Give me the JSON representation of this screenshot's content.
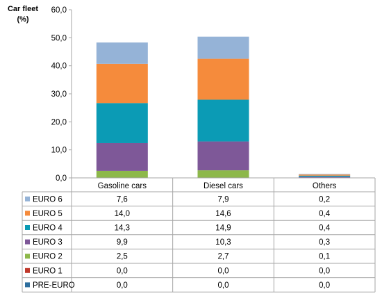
{
  "chart_data": {
    "type": "bar",
    "stacked": true,
    "ylabel_line1": "Car fleet",
    "ylabel_line2": "(%)",
    "ylim": [
      0,
      60
    ],
    "y_ticks": [
      "0,0",
      "10,0",
      "20,0",
      "30,0",
      "40,0",
      "50,0",
      "60,0"
    ],
    "y_tick_values": [
      0,
      10,
      20,
      30,
      40,
      50,
      60
    ],
    "grid": false,
    "legend": "data-table",
    "categories": [
      "Gasoline cars",
      "Diesel cars",
      "Others"
    ],
    "series": [
      {
        "name": "EURO 6",
        "color": "#95B3D7",
        "values": [
          7.6,
          7.9,
          0.2
        ],
        "labels": [
          "7,6",
          "7,9",
          "0,2"
        ]
      },
      {
        "name": "EURO 5",
        "color": "#F58B3C",
        "values": [
          14.0,
          14.6,
          0.4
        ],
        "labels": [
          "14,0",
          "14,6",
          "0,4"
        ]
      },
      {
        "name": "EURO 4",
        "color": "#0B9BB5",
        "values": [
          14.3,
          14.9,
          0.4
        ],
        "labels": [
          "14,3",
          "14,9",
          "0,4"
        ]
      },
      {
        "name": "EURO 3",
        "color": "#7E5898",
        "values": [
          9.9,
          10.3,
          0.3
        ],
        "labels": [
          "9,9",
          "10,3",
          "0,3"
        ]
      },
      {
        "name": "EURO 2",
        "color": "#8DB84A",
        "values": [
          2.5,
          2.7,
          0.1
        ],
        "labels": [
          "2,5",
          "2,7",
          "0,1"
        ]
      },
      {
        "name": "EURO 1",
        "color": "#C0392B",
        "values": [
          0.0,
          0.0,
          0.0
        ],
        "labels": [
          "0,0",
          "0,0",
          "0,0"
        ]
      },
      {
        "name": "PRE-EURO",
        "color": "#2E6E9E",
        "values": [
          0.0,
          0.0,
          0.0
        ],
        "labels": [
          "0,0",
          "0,0",
          "0,0"
        ]
      }
    ]
  }
}
